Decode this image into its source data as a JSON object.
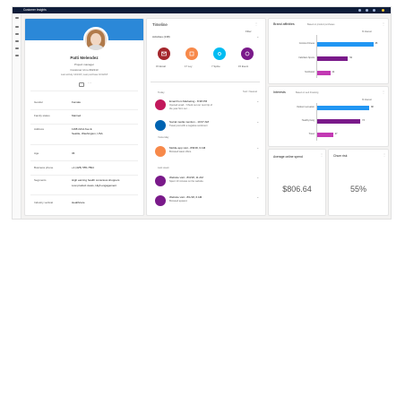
{
  "app": {
    "title": "Customer Insights"
  },
  "profile": {
    "name": "Patti Melendez",
    "title": "Project manager",
    "customer_id": "Customer id no.602213",
    "last_activity": "Last activity 12/1/18  |  Last purchase 10/12/18",
    "fields": [
      {
        "label": "Gender",
        "value": "Female"
      },
      {
        "label": "Family status",
        "value": "Married"
      },
      {
        "label": "Address",
        "value": "1198 22nd Ave E",
        "value2": "Seattle, Washington, USA"
      },
      {
        "label": "Age",
        "value": "36"
      },
      {
        "label": "Business phone",
        "value": "+1 (425) 555-7894"
      },
      {
        "label": "Segments",
        "value": "High earning health conscious shoppers",
        "value2": "Low product views, High engagement"
      },
      {
        "label": "Industry vertical",
        "value": "Healthcare"
      }
    ]
  },
  "timeline": {
    "title": "Timeline",
    "filter_label": "Filter",
    "activities_label": "Activities (138)",
    "categories": [
      {
        "label": "15 Email",
        "color": "#a4262c",
        "icon": "email-icon"
      },
      {
        "label": "17 Loy",
        "color": "#f7894a",
        "icon": "loyalty-icon"
      },
      {
        "label": "7 Sprite",
        "color": "#00bcf2",
        "icon": "sprite-icon"
      },
      {
        "label": "15 Event",
        "color": "#7a1a8a",
        "icon": "event-icon"
      }
    ],
    "today_label": "Today",
    "sort_label": "Sort: Newest",
    "items": [
      {
        "title": "Email from Marketing - 8:38 PM",
        "line1": "Opened email - 'Check out our next trip of",
        "line2": "the year from our ...",
        "color": "#c2185b",
        "icon": "email-icon"
      },
      {
        "title": "Social media mention - 10:07 AM",
        "line1": "Tweet post with a negative sentiment",
        "line2": "",
        "color": "#0063b1",
        "icon": "social-icon"
      }
    ],
    "yesterday_label": "Yesterday",
    "items2": [
      {
        "title": "Mobile app visit - 8/8/18, 6 AM",
        "line1": "Browsed latest offers.",
        "line2": "",
        "color": "#f7894a",
        "icon": "mobile-icon"
      }
    ],
    "last_week_label": "Last week",
    "items3": [
      {
        "title": "Website visit - 8/3/18, 11 AM",
        "line1": "Spent 10 minutes on the website.",
        "color": "#7a1a8a",
        "icon": "globe-icon"
      },
      {
        "title": "Website visit - 8/1/18, 6 AM",
        "line1": "Browsed apparel.",
        "color": "#7a1a8a",
        "icon": "globe-icon"
      }
    ]
  },
  "brand_affinities": {
    "title": "Brand affinities",
    "subtitle": "Based on product purchases",
    "legend": "% interest",
    "bars": [
      {
        "label": "Contoso Fitness",
        "value": 95,
        "color": "#2196f3"
      },
      {
        "label": "Fabrikam Sports",
        "value": 52,
        "color": "#7a1a8a"
      },
      {
        "label": "Northwind",
        "value": 22,
        "color": "#c239b3"
      }
    ]
  },
  "interests": {
    "title": "Interests",
    "subtitle": "Based on web browsing",
    "legend": "% interest",
    "bars": [
      {
        "label": "Outdoor recreation",
        "value": 88,
        "color": "#2196f3"
      },
      {
        "label": "Healthy living",
        "value": 73,
        "color": "#7a1a8a"
      },
      {
        "label": "Travel",
        "value": 27,
        "color": "#c239b3"
      }
    ]
  },
  "kpis": [
    {
      "title": "Average online spend",
      "value": "$806.64"
    },
    {
      "title": "Churn risk",
      "value": "55%"
    }
  ]
}
